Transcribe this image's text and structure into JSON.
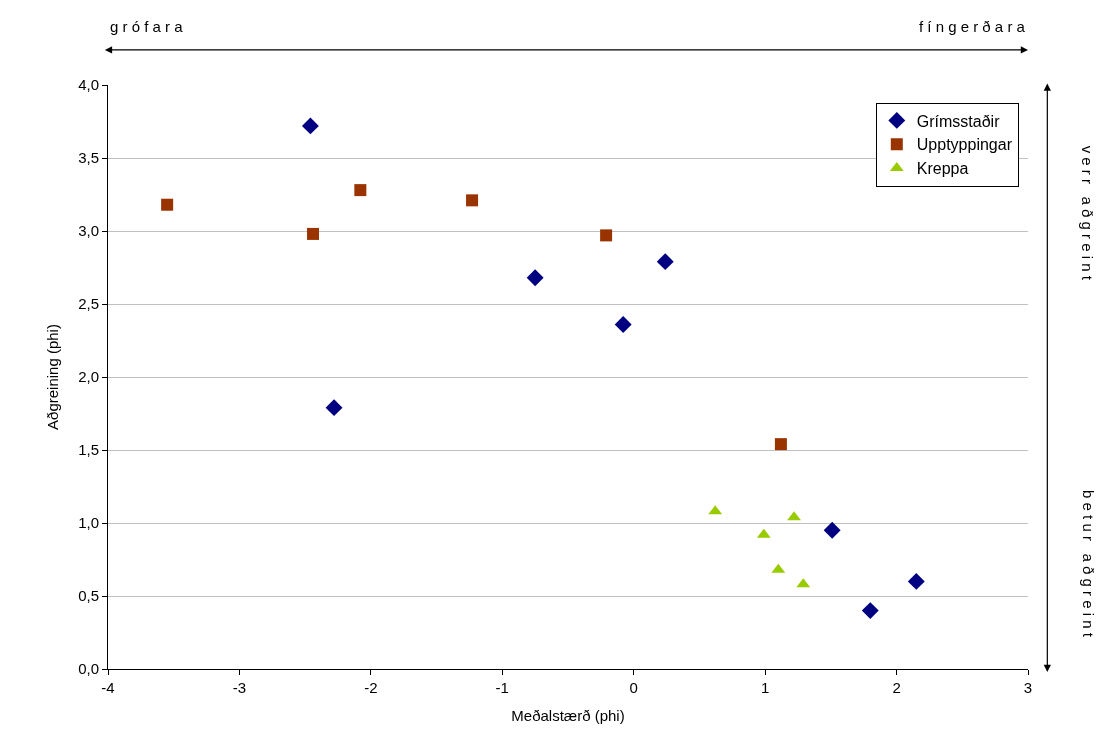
{
  "chart_data": {
    "type": "scatter",
    "xlabel": "Meðalstærð (phi)",
    "ylabel": "Aðgreining (phi)",
    "xlim": [
      -4,
      3
    ],
    "xticks": [
      -4,
      -3,
      -2,
      -1,
      0,
      1,
      2,
      3
    ],
    "ylim": [
      0,
      4
    ],
    "yticks": [
      {
        "value": 0,
        "label": "0,0"
      },
      {
        "value": 0.5,
        "label": "0,5"
      },
      {
        "value": 1,
        "label": "1,0"
      },
      {
        "value": 1.5,
        "label": "1,5"
      },
      {
        "value": 2,
        "label": "2,0"
      },
      {
        "value": 2.5,
        "label": "2,5"
      },
      {
        "value": 3,
        "label": "3,0"
      },
      {
        "value": 3.5,
        "label": "3,5"
      },
      {
        "value": 4,
        "label": "4,0"
      }
    ],
    "grid": "y",
    "legend": "top right",
    "annotations": [
      "g r ó f a r a",
      "f í n g e r ð a r a",
      "v e r r   a ð g r e i n t",
      "b e t u r   a ð g r e i n t"
    ],
    "series": [
      {
        "name": "Grímsstaðir",
        "color": "#000080",
        "marker": "diamond",
        "x": [
          -2.46,
          -0.75,
          0.24,
          -0.08,
          -2.28,
          1.51,
          2.15,
          1.8
        ],
        "values": [
          3.72,
          2.68,
          2.79,
          2.36,
          1.79,
          0.95,
          0.6,
          0.4
        ]
      },
      {
        "name": "Upptyppingar",
        "color": "#993300",
        "marker": "square",
        "x": [
          -3.55,
          -2.44,
          -2.08,
          -1.23,
          -0.21,
          1.12
        ],
        "values": [
          3.18,
          2.98,
          3.28,
          3.21,
          2.97,
          1.54
        ]
      },
      {
        "name": "Kreppa",
        "color": "#99cc00",
        "marker": "triangle",
        "x": [
          0.62,
          0.99,
          1.22,
          1.1,
          1.29
        ],
        "values": [
          1.08,
          0.92,
          1.04,
          0.68,
          0.58
        ]
      }
    ]
  }
}
